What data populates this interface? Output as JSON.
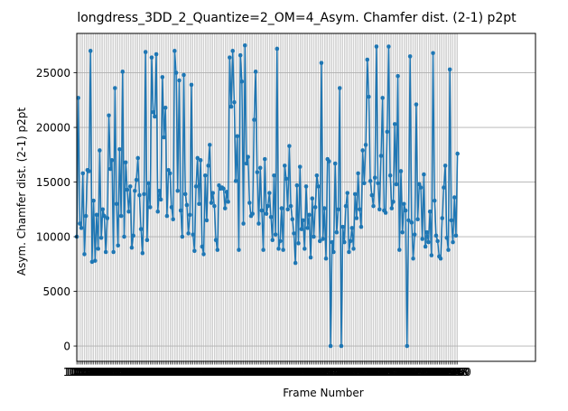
{
  "chart_data": {
    "type": "line",
    "title": "longdress_3DD_2_Quantize=2_OM=4_Asym. Chamfer dist. (2-1) p2pt",
    "xlabel": "Frame Number",
    "ylabel": "Asym. Chamfer dist. (2-1) p2pt",
    "ylim": [
      -1400,
      28600
    ],
    "yticks": [
      0,
      5000,
      10000,
      15000,
      20000,
      25000
    ],
    "xlim": [
      1051,
      1351
    ],
    "grid": true,
    "series": [
      {
        "color": "#1f77b4",
        "marker": "circle",
        "x_start": 1051,
        "y": [
          10000,
          22700,
          11200,
          10800,
          15800,
          8400,
          11900,
          16100,
          16000,
          27000,
          7700,
          13300,
          7800,
          12000,
          8900,
          17900,
          9900,
          12500,
          11900,
          8600,
          11700,
          21100,
          16200,
          17000,
          8600,
          23600,
          13000,
          9200,
          18000,
          11900,
          25100,
          10000,
          16800,
          14300,
          12300,
          14600,
          9000,
          10100,
          14200,
          15200,
          17200,
          13800,
          10700,
          8500,
          13900,
          26900,
          9700,
          14900,
          12700,
          26400,
          21400,
          21000,
          26700,
          12300,
          14200,
          13400,
          24600,
          19100,
          21800,
          11900,
          16100,
          15800,
          12700,
          11600,
          27000,
          25000,
          14200,
          24300,
          12400,
          10000,
          24800,
          13900,
          12900,
          10300,
          12000,
          23900,
          10200,
          8700,
          14600,
          17200,
          13000,
          17000,
          9100,
          8400,
          15600,
          11500,
          16500,
          18400,
          13100,
          14000,
          12800,
          9700,
          8800,
          14700,
          14400,
          14500,
          14400,
          12600,
          14100,
          13200,
          26400,
          21900,
          27000,
          22300,
          15100,
          19200,
          8800,
          26600,
          24200,
          11200,
          27500,
          16700,
          17300,
          13100,
          11900,
          12100,
          20700,
          25100,
          15900,
          11200,
          16300,
          12400,
          8800,
          17100,
          12100,
          12800,
          14000,
          11800,
          9700,
          15600,
          10200,
          27200,
          8900,
          9600,
          12600,
          8800,
          16500,
          15300,
          12500,
          18300,
          12800,
          11600,
          10300,
          7600,
          14700,
          9400,
          16400,
          10700,
          11500,
          8900,
          14600,
          10800,
          12000,
          8100,
          13500,
          10000,
          12700,
          15600,
          14600,
          9600,
          25900,
          9800,
          12600,
          8000,
          17100,
          16900,
          0,
          9500,
          8600,
          16700,
          10400,
          12500,
          23600,
          0,
          10900,
          9500,
          12800,
          14000,
          8600,
          9600,
          10800,
          8900,
          13900,
          11700,
          15800,
          12500,
          10900,
          17900,
          14900,
          18400,
          26200,
          22800,
          15100,
          13800,
          12800,
          15400,
          27400,
          14900,
          12500,
          17400,
          22700,
          12400,
          12200,
          19600,
          27400,
          15600,
          12600,
          13200,
          20300,
          14800,
          24700,
          8800,
          16000,
          10400,
          13000,
          12400,
          0,
          11500,
          26500,
          11300,
          8000,
          10200,
          22100,
          11600,
          14800,
          14500,
          9800,
          15700,
          9100,
          10400,
          9500,
          12300,
          8300,
          26800,
          13300,
          10100,
          9600,
          8200,
          8000,
          11700,
          14500,
          16500,
          9900,
          8800,
          25300,
          11500,
          9500,
          13600,
          10100,
          17600
        ]
      }
    ]
  },
  "colors": {
    "line": "#1f77b4",
    "grid": "#b0b0b0"
  }
}
